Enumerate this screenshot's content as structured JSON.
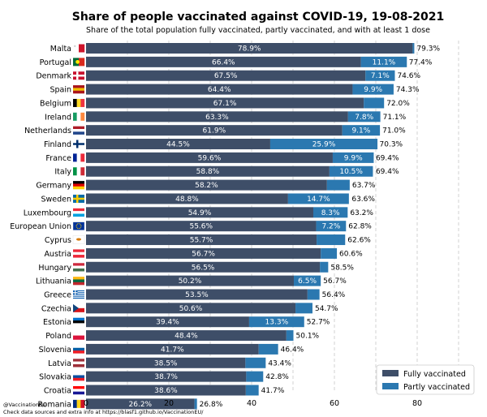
{
  "footer": {
    "handle": "@VaccinationEu",
    "sources": "Check data sources and extra info at https://blasf1.github.io/VaccinationEU/"
  },
  "chart_data": {
    "type": "bar",
    "orientation": "horizontal",
    "stacked": true,
    "title": "Share of people vaccinated against COVID-19, 19-08-2021",
    "subtitle": "Share of the total population fully vaccinated, partly vaccinated, and with at least 1 dose",
    "xlim": [
      0,
      90
    ],
    "xticks": [
      0,
      20,
      40,
      60,
      80
    ],
    "grid": "vertical-dashed",
    "legend_position": "bottom-right",
    "categories": [
      "Malta",
      "Portugal",
      "Denmark",
      "Spain",
      "Belgium",
      "Ireland",
      "Netherlands",
      "Finland",
      "France",
      "Italy",
      "Germany",
      "Sweden",
      "Luxembourg",
      "European Union",
      "Cyprus",
      "Austria",
      "Hungary",
      "Lithuania",
      "Greece",
      "Czechia",
      "Estonia",
      "Poland",
      "Slovenia",
      "Latvia",
      "Slovakia",
      "Croatia",
      "Romania"
    ],
    "series": [
      {
        "name": "Fully vaccinated",
        "color": "#3e4e68",
        "values": [
          78.9,
          66.4,
          67.5,
          64.4,
          67.1,
          63.3,
          61.9,
          44.5,
          59.6,
          58.8,
          58.2,
          48.8,
          54.9,
          55.6,
          55.7,
          56.7,
          56.5,
          50.2,
          53.5,
          50.6,
          39.4,
          48.4,
          41.7,
          38.5,
          38.7,
          38.6,
          26.2
        ],
        "labels": [
          "78.9%",
          "66.4%",
          "67.5%",
          "64.4%",
          "67.1%",
          "63.3%",
          "61.9%",
          "44.5%",
          "59.6%",
          "58.8%",
          "58.2%",
          "48.8%",
          "54.9%",
          "55.6%",
          "55.7%",
          "56.7%",
          "56.5%",
          "50.2%",
          "53.5%",
          "50.6%",
          "39.4%",
          "48.4%",
          "41.7%",
          "38.5%",
          "38.7%",
          "38.6%",
          "26.2%"
        ]
      },
      {
        "name": "Partly vaccinated",
        "color": "#2b78b0",
        "values": [
          0.4,
          11.1,
          7.1,
          9.9,
          4.9,
          7.8,
          9.1,
          25.9,
          9.9,
          10.5,
          5.5,
          14.7,
          8.3,
          7.2,
          6.9,
          3.9,
          2.0,
          6.5,
          2.9,
          4.1,
          13.3,
          1.7,
          4.7,
          4.9,
          4.1,
          3.1,
          0.6
        ],
        "labels": [
          "",
          "11.1%",
          "7.1%",
          "9.9%",
          "",
          "7.8%",
          "9.1%",
          "25.9%",
          "9.9%",
          "10.5%",
          "",
          "14.7%",
          "8.3%",
          "7.2%",
          "",
          "",
          "",
          "6.5%",
          "",
          "",
          "13.3%",
          "",
          "",
          "",
          "",
          "",
          ""
        ]
      }
    ],
    "totals": [
      79.3,
      77.4,
      74.6,
      74.3,
      72.0,
      71.1,
      71.0,
      70.3,
      69.4,
      69.4,
      63.7,
      63.6,
      63.2,
      62.8,
      62.6,
      60.6,
      58.5,
      56.7,
      56.4,
      54.7,
      52.7,
      50.1,
      46.4,
      43.4,
      42.8,
      41.7,
      26.8
    ],
    "total_labels": [
      "79.3%",
      "77.4%",
      "74.6%",
      "74.3%",
      "72.0%",
      "71.1%",
      "71.0%",
      "70.3%",
      "69.4%",
      "69.4%",
      "63.7%",
      "63.6%",
      "63.2%",
      "62.8%",
      "62.6%",
      "60.6%",
      "58.5%",
      "56.7%",
      "56.4%",
      "54.7%",
      "52.7%",
      "50.1%",
      "46.4%",
      "43.4%",
      "42.8%",
      "41.7%",
      "26.8%"
    ],
    "flags": [
      {
        "type": "v",
        "colors": [
          "#ffffff",
          "#cf142b"
        ]
      },
      {
        "type": "v",
        "colors": [
          "#046a38",
          "#da291c"
        ]
      },
      {
        "type": "nordic",
        "colors": [
          "#c8102e",
          "#ffffff"
        ]
      },
      {
        "type": "h3",
        "colors": [
          "#aa151b",
          "#f1bf00",
          "#aa151b"
        ]
      },
      {
        "type": "v3",
        "colors": [
          "#000000",
          "#fdda24",
          "#ef3340"
        ]
      },
      {
        "type": "v3",
        "colors": [
          "#169b62",
          "#ffffff",
          "#ff883e"
        ]
      },
      {
        "type": "h3",
        "colors": [
          "#ae1c28",
          "#ffffff",
          "#21468b"
        ]
      },
      {
        "type": "nordic",
        "colors": [
          "#ffffff",
          "#002f6c"
        ]
      },
      {
        "type": "v3",
        "colors": [
          "#002395",
          "#ffffff",
          "#ed2939"
        ]
      },
      {
        "type": "v3",
        "colors": [
          "#009246",
          "#ffffff",
          "#ce2b37"
        ]
      },
      {
        "type": "h3",
        "colors": [
          "#000000",
          "#dd0000",
          "#ffce00"
        ]
      },
      {
        "type": "nordic",
        "colors": [
          "#006aa7",
          "#fecc00"
        ]
      },
      {
        "type": "h3",
        "colors": [
          "#ed2939",
          "#ffffff",
          "#00a1de"
        ]
      },
      {
        "type": "solid",
        "colors": [
          "#003399"
        ]
      },
      {
        "type": "solid",
        "colors": [
          "#ffffff"
        ]
      },
      {
        "type": "h3",
        "colors": [
          "#ed2939",
          "#ffffff",
          "#ed2939"
        ]
      },
      {
        "type": "h3",
        "colors": [
          "#cd2a3e",
          "#ffffff",
          "#436f4d"
        ]
      },
      {
        "type": "h3",
        "colors": [
          "#fdb913",
          "#006a44",
          "#c1272d"
        ]
      },
      {
        "type": "stripes",
        "colors": [
          "#0d5eaf",
          "#ffffff"
        ]
      },
      {
        "type": "h2tri",
        "colors": [
          "#ffffff",
          "#d7141a",
          "#11457e"
        ]
      },
      {
        "type": "h3",
        "colors": [
          "#0072ce",
          "#000000",
          "#ffffff"
        ]
      },
      {
        "type": "h2",
        "colors": [
          "#ffffff",
          "#dc143c"
        ]
      },
      {
        "type": "h3",
        "colors": [
          "#ffffff",
          "#005da4",
          "#ed1c24"
        ]
      },
      {
        "type": "h3",
        "colors": [
          "#9e3039",
          "#ffffff",
          "#9e3039"
        ]
      },
      {
        "type": "h3",
        "colors": [
          "#ffffff",
          "#0b4ea2",
          "#ee1c25"
        ]
      },
      {
        "type": "h3",
        "colors": [
          "#ff0000",
          "#ffffff",
          "#171796"
        ]
      },
      {
        "type": "v3",
        "colors": [
          "#002b7f",
          "#fcd116",
          "#ce1126"
        ]
      }
    ]
  }
}
